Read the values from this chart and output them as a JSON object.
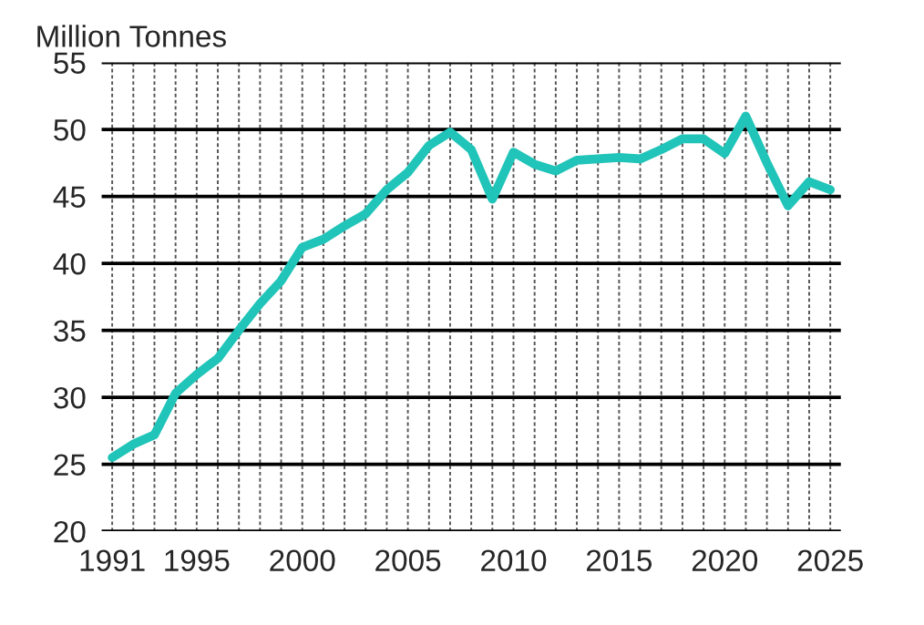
{
  "chart_data": {
    "type": "line",
    "ylabel": "Million Tonnes",
    "x": [
      1991,
      1992,
      1993,
      1994,
      1995,
      1996,
      1997,
      1998,
      1999,
      2000,
      2001,
      2002,
      2003,
      2004,
      2005,
      2006,
      2007,
      2008,
      2009,
      2010,
      2011,
      2012,
      2013,
      2014,
      2015,
      2016,
      2017,
      2018,
      2019,
      2020,
      2021,
      2022,
      2023,
      2024,
      2025
    ],
    "series": [
      {
        "color": "#20c4b8",
        "values": [
          25.5,
          26.5,
          27.2,
          30.3,
          31.7,
          32.9,
          35,
          37,
          38.7,
          41.2,
          41.8,
          42.8,
          43.7,
          45.5,
          46.8,
          48.8,
          49.8,
          48.5,
          44.8,
          48.3,
          47.4,
          46.9,
          47.7,
          47.8,
          47.9,
          47.8,
          48.5,
          49.3,
          49.3,
          48.2,
          51,
          47.5,
          44.3,
          46.1,
          45.5
        ]
      }
    ],
    "xlim": [
      1990.5,
      2025.5
    ],
    "xticks": [
      1991,
      {
        "value": 1992,
        "label": null
      },
      {
        "value": 1993,
        "label": null
      },
      {
        "value": 1994,
        "label": null
      },
      1995,
      {
        "value": 1996,
        "label": null
      },
      {
        "value": 1997,
        "label": null
      },
      {
        "value": 1998,
        "label": null
      },
      {
        "value": 1999,
        "label": null
      },
      2000,
      {
        "value": 2001,
        "label": null
      },
      {
        "value": 2002,
        "label": null
      },
      {
        "value": 2003,
        "label": null
      },
      {
        "value": 2004,
        "label": null
      },
      2005,
      {
        "value": 2006,
        "label": null
      },
      {
        "value": 2007,
        "label": null
      },
      {
        "value": 2008,
        "label": null
      },
      {
        "value": 2009,
        "label": null
      },
      2010,
      {
        "value": 2011,
        "label": null
      },
      {
        "value": 2012,
        "label": null
      },
      {
        "value": 2013,
        "label": null
      },
      {
        "value": 2014,
        "label": null
      },
      2015,
      {
        "value": 2016,
        "label": null
      },
      {
        "value": 2017,
        "label": null
      },
      {
        "value": 2018,
        "label": null
      },
      {
        "value": 2019,
        "label": null
      },
      2020,
      {
        "value": 2021,
        "label": null
      },
      {
        "value": 2022,
        "label": null
      },
      {
        "value": 2023,
        "label": null
      },
      {
        "value": 2024,
        "label": null
      },
      2025
    ],
    "ylim": [
      20,
      55
    ],
    "yticks": [
      20,
      25,
      30,
      35,
      40,
      45,
      50,
      55
    ],
    "grid": true,
    "marker": "none",
    "line_style": "solid"
  }
}
